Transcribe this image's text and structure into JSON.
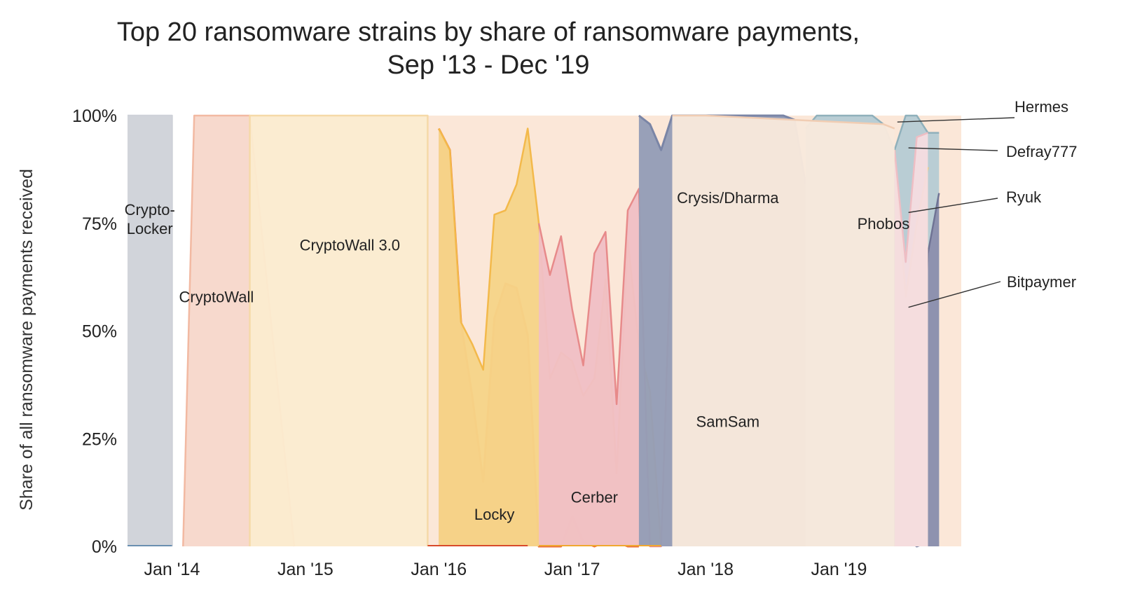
{
  "chart_data": {
    "type": "area",
    "stacking": "percent",
    "title_lines": [
      "Top 20 ransomware strains by share of ransomware payments,",
      "Sep '13 - Dec '19"
    ],
    "ylabel": "Share of all ransomware payments received",
    "xlabel": "",
    "x_range": [
      "2013-09",
      "2019-12"
    ],
    "ylim": [
      0,
      100
    ],
    "y_ticks": [
      {
        "value": 0,
        "label": "0%"
      },
      {
        "value": 25,
        "label": "25%"
      },
      {
        "value": 50,
        "label": "50%"
      },
      {
        "value": 75,
        "label": "75%"
      },
      {
        "value": 100,
        "label": "100%"
      }
    ],
    "x_ticks": [
      {
        "value": "2014-01",
        "label": "Jan '14"
      },
      {
        "value": "2015-01",
        "label": "Jan '15"
      },
      {
        "value": "2016-01",
        "label": "Jan '16"
      },
      {
        "value": "2017-01",
        "label": "Jan '17"
      },
      {
        "value": "2018-01",
        "label": "Jan '18"
      },
      {
        "value": "2019-01",
        "label": "Jan '19"
      }
    ],
    "grid": false,
    "legend": "none",
    "series": [
      {
        "name": "CryptoLocker",
        "label_lines": [
          "Crypto-",
          "Locker"
        ],
        "fill": "#cfd2d9",
        "stroke": "#cfd2d9",
        "points": [
          [
            "2013-09",
            100
          ],
          [
            "2014-01",
            100
          ],
          [
            "2014-01",
            0
          ]
        ]
      },
      {
        "name": "CryptoWall",
        "label_lines": [
          "CryptoWall"
        ],
        "fill": "#f7d7cb",
        "stroke": "#f2b9a2",
        "points": [
          [
            "2014-02",
            0
          ],
          [
            "2014-03",
            100
          ],
          [
            "2014-08",
            100
          ],
          [
            "2014-12",
            0
          ]
        ]
      },
      {
        "name": "CryptoWall 3.0",
        "label_lines": [
          "CryptoWall 3.0"
        ],
        "fill": "#fbebcf",
        "stroke": "#f5d9a8",
        "points": [
          [
            "2014-08",
            0
          ],
          [
            "2014-08",
            100
          ],
          [
            "2015-12",
            100
          ],
          [
            "2015-12",
            0
          ]
        ]
      },
      {
        "name": "Locky",
        "label_lines": [
          "Locky"
        ],
        "fill": "#f09c70",
        "stroke": "#ea6a36",
        "points": [
          [
            "2016-01",
            97
          ],
          [
            "2016-02",
            92
          ],
          [
            "2016-03",
            52
          ],
          [
            "2016-04",
            35
          ],
          [
            "2016-05",
            15
          ],
          [
            "2016-06",
            53
          ],
          [
            "2016-07",
            61
          ],
          [
            "2016-08",
            60
          ],
          [
            "2016-09",
            49
          ],
          [
            "2016-10",
            0
          ],
          [
            "2016-11",
            0
          ],
          [
            "2016-12",
            0
          ],
          [
            "2017-01",
            7
          ],
          [
            "2017-02",
            1
          ],
          [
            "2017-03",
            0
          ],
          [
            "2017-04",
            1
          ],
          [
            "2017-05",
            1
          ],
          [
            "2017-06",
            0
          ],
          [
            "2017-07",
            0
          ]
        ]
      },
      {
        "name": "Cerber",
        "label_lines": [
          "Cerber"
        ],
        "fill": "#f6d488",
        "stroke": "#f3b94b",
        "points": [
          [
            "2016-01",
            97
          ],
          [
            "2016-02",
            92
          ],
          [
            "2016-03",
            52
          ],
          [
            "2016-04",
            47
          ],
          [
            "2016-05",
            41
          ],
          [
            "2016-06",
            77
          ],
          [
            "2016-07",
            78
          ],
          [
            "2016-08",
            84
          ],
          [
            "2016-09",
            97
          ],
          [
            "2016-10",
            75
          ],
          [
            "2016-11",
            39
          ],
          [
            "2016-12",
            45
          ],
          [
            "2017-01",
            43
          ],
          [
            "2017-02",
            35
          ],
          [
            "2017-03",
            39
          ],
          [
            "2017-04",
            62
          ],
          [
            "2017-05",
            17
          ],
          [
            "2017-06",
            71
          ],
          [
            "2017-07",
            47
          ],
          [
            "2017-08",
            36
          ],
          [
            "2017-09",
            0
          ]
        ]
      },
      {
        "name": "SamSam",
        "label_lines": [
          "SamSam"
        ],
        "fill": "#f0c0c5",
        "stroke": "#e78a8a",
        "points": [
          [
            "2016-10",
            75
          ],
          [
            "2016-11",
            63
          ],
          [
            "2016-12",
            72
          ],
          [
            "2017-01",
            55
          ],
          [
            "2017-02",
            42
          ],
          [
            "2017-03",
            68
          ],
          [
            "2017-04",
            73
          ],
          [
            "2017-05",
            33
          ],
          [
            "2017-06",
            78
          ],
          [
            "2017-07",
            83
          ],
          [
            "2017-08",
            0
          ],
          [
            "2017-09",
            0
          ],
          [
            "2017-10",
            80
          ],
          [
            "2017-11",
            64
          ],
          [
            "2017-12",
            48
          ],
          [
            "2018-01",
            56
          ],
          [
            "2018-02",
            59
          ],
          [
            "2018-03",
            55
          ],
          [
            "2018-04",
            42
          ],
          [
            "2018-05",
            60
          ],
          [
            "2018-06",
            60
          ],
          [
            "2018-07",
            45
          ],
          [
            "2018-08",
            49
          ],
          [
            "2018-09",
            55
          ],
          [
            "2018-10",
            0
          ]
        ]
      },
      {
        "name": "Crysis/Dharma",
        "label_lines": [
          "Crysis/Dharma"
        ],
        "fill": "#949db6",
        "stroke": "#7a85a6",
        "points": [
          [
            "2017-07",
            100
          ],
          [
            "2017-08",
            98
          ],
          [
            "2017-09",
            92
          ],
          [
            "2017-10",
            100
          ],
          [
            "2017-11",
            100
          ],
          [
            "2017-12",
            100
          ],
          [
            "2018-01",
            100
          ],
          [
            "2018-02",
            100
          ],
          [
            "2018-03",
            100
          ],
          [
            "2018-04",
            100
          ],
          [
            "2018-05",
            100
          ],
          [
            "2018-06",
            100
          ],
          [
            "2018-07",
            100
          ],
          [
            "2018-08",
            100
          ],
          [
            "2018-09",
            99
          ],
          [
            "2018-10",
            84
          ],
          [
            "2018-11",
            48
          ],
          [
            "2018-12",
            48
          ],
          [
            "2019-01",
            51
          ],
          [
            "2019-02",
            44
          ],
          [
            "2019-03",
            37
          ],
          [
            "2019-04",
            19
          ],
          [
            "2019-05",
            1
          ],
          [
            "2019-06",
            2
          ],
          [
            "2019-07",
            2
          ],
          [
            "2019-08",
            0
          ],
          [
            "2019-09",
            1
          ],
          [
            "2019-10",
            1
          ]
        ]
      },
      {
        "name": "Phobos",
        "label_lines": [
          "Phobos"
        ],
        "fill": "#b6ccd3",
        "stroke": "#8fb0bb",
        "points": [
          [
            "2018-10",
            97
          ],
          [
            "2018-11",
            100
          ],
          [
            "2018-12",
            100
          ],
          [
            "2019-01",
            100
          ],
          [
            "2019-02",
            100
          ],
          [
            "2019-03",
            100
          ],
          [
            "2019-04",
            100
          ],
          [
            "2019-05",
            98
          ],
          [
            "2019-06",
            92
          ],
          [
            "2019-07",
            100
          ],
          [
            "2019-08",
            100
          ],
          [
            "2019-09",
            96
          ],
          [
            "2019-10",
            96
          ]
        ]
      },
      {
        "name": "Bitpaymer",
        "label_lines": [
          "Bitpaymer"
        ],
        "fill": "#8d90ad",
        "stroke": "#6f7394",
        "points": [
          [
            "2019-07",
            12
          ],
          [
            "2019-08",
            13
          ],
          [
            "2019-09",
            68
          ],
          [
            "2019-10",
            82
          ]
        ]
      },
      {
        "name": "Ryuk",
        "label_lines": [
          "Ryuk"
        ],
        "fill": "#fbe3a8",
        "stroke": "#f3cb66",
        "points": [
          [
            "2019-06",
            92
          ],
          [
            "2019-07",
            58
          ],
          [
            "2019-08",
            75
          ],
          [
            "2019-09",
            88
          ]
        ]
      },
      {
        "name": "Defray777",
        "label_lines": [
          "Defray777"
        ],
        "fill": "#f5dde0",
        "stroke": "#eebec4",
        "points": [
          [
            "2019-06",
            92
          ],
          [
            "2019-07",
            66
          ],
          [
            "2019-08",
            95
          ],
          [
            "2019-09",
            96
          ]
        ]
      },
      {
        "name": "Hermes",
        "label_lines": [
          "Hermes"
        ],
        "fill": "#f8e9dc",
        "stroke": "#f1cdb3",
        "points": [
          [
            "2017-10",
            100
          ],
          [
            "2018-01",
            100
          ],
          [
            "2019-05",
            98
          ],
          [
            "2019-06",
            97
          ]
        ]
      }
    ]
  }
}
